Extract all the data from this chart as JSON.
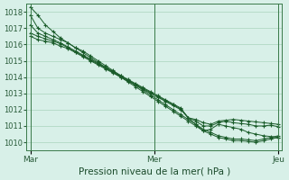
{
  "title": "Pression niveau de la mer( hPa )",
  "xlabel": "Pression niveau de la mer( hPa )",
  "xtick_labels": [
    "Mar",
    "Mer",
    "Jeu"
  ],
  "xtick_positions": [
    0,
    48,
    96
  ],
  "ylim": [
    1009.5,
    1018.5
  ],
  "yticks": [
    1010,
    1011,
    1012,
    1013,
    1014,
    1015,
    1016,
    1017,
    1018
  ],
  "bg_color": "#d8f0e8",
  "grid_color": "#aad4bc",
  "line_color": "#1a5c2a",
  "marker": "+",
  "series": [
    [
      1018.3,
      1017.8,
      1017.2,
      1016.8,
      1016.4,
      1016.1,
      1015.8,
      1015.5,
      1015.2,
      1014.9,
      1014.6,
      1014.3,
      1014.0,
      1013.7,
      1013.4,
      1013.1,
      1012.8,
      1012.5,
      1012.2,
      1011.9,
      1011.6,
      1011.3,
      1011.0,
      1010.7,
      1010.5,
      1010.3,
      1010.2,
      1010.1,
      1010.1,
      1010.05,
      1010.0,
      1010.1,
      1010.2,
      1010.3
    ],
    [
      1017.8,
      1017.0,
      1016.7,
      1016.5,
      1016.3,
      1016.1,
      1015.8,
      1015.6,
      1015.3,
      1015.0,
      1014.7,
      1014.4,
      1014.1,
      1013.8,
      1013.5,
      1013.2,
      1012.9,
      1012.6,
      1012.3,
      1012.0,
      1011.7,
      1011.4,
      1011.1,
      1010.8,
      1010.6,
      1010.4,
      1010.3,
      1010.2,
      1010.2,
      1010.15,
      1010.1,
      1010.2,
      1010.3,
      1010.4
    ],
    [
      1017.2,
      1016.7,
      1016.5,
      1016.3,
      1016.1,
      1015.85,
      1015.6,
      1015.35,
      1015.1,
      1014.85,
      1014.6,
      1014.35,
      1014.1,
      1013.85,
      1013.6,
      1013.35,
      1013.1,
      1012.85,
      1012.6,
      1012.35,
      1012.1,
      1011.5,
      1011.1,
      1010.7,
      1010.8,
      1011.1,
      1011.0,
      1010.9,
      1010.8,
      1010.6,
      1010.5,
      1010.4,
      1010.35,
      1010.3
    ],
    [
      1016.7,
      1016.5,
      1016.35,
      1016.2,
      1016.05,
      1015.8,
      1015.55,
      1015.3,
      1015.05,
      1014.8,
      1014.55,
      1014.3,
      1014.05,
      1013.8,
      1013.55,
      1013.3,
      1013.05,
      1012.8,
      1012.55,
      1012.3,
      1012.05,
      1011.5,
      1011.3,
      1011.0,
      1011.0,
      1011.2,
      1011.3,
      1011.2,
      1011.15,
      1011.1,
      1011.0,
      1011.0,
      1011.05,
      1010.95
    ],
    [
      1016.5,
      1016.3,
      1016.2,
      1016.1,
      1015.9,
      1015.75,
      1015.5,
      1015.25,
      1015.0,
      1014.75,
      1014.5,
      1014.25,
      1014.0,
      1013.75,
      1013.5,
      1013.25,
      1013.0,
      1012.75,
      1012.5,
      1012.25,
      1012.0,
      1011.5,
      1011.4,
      1011.2,
      1011.1,
      1011.3,
      1011.35,
      1011.4,
      1011.35,
      1011.3,
      1011.25,
      1011.2,
      1011.15,
      1011.1
    ]
  ]
}
